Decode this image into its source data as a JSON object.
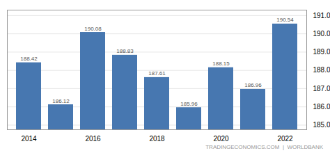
{
  "chart_data": {
    "type": "bar",
    "categories": [
      "2014",
      null,
      "2016",
      null,
      "2018",
      null,
      "2020",
      null,
      "2022"
    ],
    "values": [
      188.42,
      186.12,
      190.08,
      188.83,
      187.61,
      185.96,
      188.15,
      186.96,
      190.54
    ],
    "color": "#4777b0",
    "ylim": [
      184.75,
      191.3
    ],
    "yticks": [
      185,
      186,
      187,
      188,
      189,
      190,
      191
    ],
    "grid": true,
    "data_labels": true,
    "annotations": [
      "TRADINGECONOMICS.COM  |  WORLDBANK"
    ]
  }
}
